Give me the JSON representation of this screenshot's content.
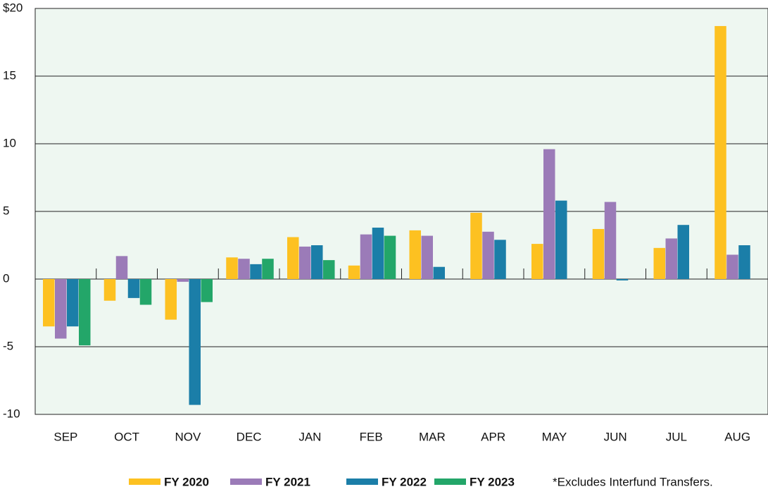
{
  "chart_data": {
    "type": "bar",
    "categories": [
      "SEP",
      "OCT",
      "NOV",
      "DEC",
      "JAN",
      "FEB",
      "MAR",
      "APR",
      "MAY",
      "JUN",
      "JUL",
      "AUG"
    ],
    "series": [
      {
        "name": "FY 2020",
        "color": "#fdc121",
        "values": [
          -3.5,
          -1.6,
          -3.0,
          1.6,
          3.1,
          1.0,
          3.6,
          4.9,
          2.6,
          3.7,
          2.3,
          18.7
        ]
      },
      {
        "name": "FY 2021",
        "color": "#9b7bb8",
        "values": [
          -4.4,
          1.7,
          -0.2,
          1.5,
          2.4,
          3.3,
          3.2,
          3.5,
          9.6,
          5.7,
          3.0,
          1.8
        ]
      },
      {
        "name": "FY 2022",
        "color": "#1b7ea8",
        "values": [
          -3.5,
          -1.4,
          -9.3,
          1.1,
          2.5,
          3.8,
          0.9,
          2.9,
          5.8,
          -0.1,
          4.0,
          2.5
        ]
      },
      {
        "name": "FY 2023",
        "color": "#23a669",
        "values": [
          -4.9,
          -1.9,
          -1.7,
          1.5,
          1.4,
          3.2,
          null,
          null,
          null,
          null,
          null,
          null
        ]
      }
    ],
    "ylim": [
      -10,
      20
    ],
    "yticks": [
      -10,
      -5,
      0,
      5,
      10,
      15,
      {
        "value": 20,
        "label": "$20"
      }
    ],
    "grid": true,
    "footnote": "*Excludes Interfund Transfers."
  }
}
